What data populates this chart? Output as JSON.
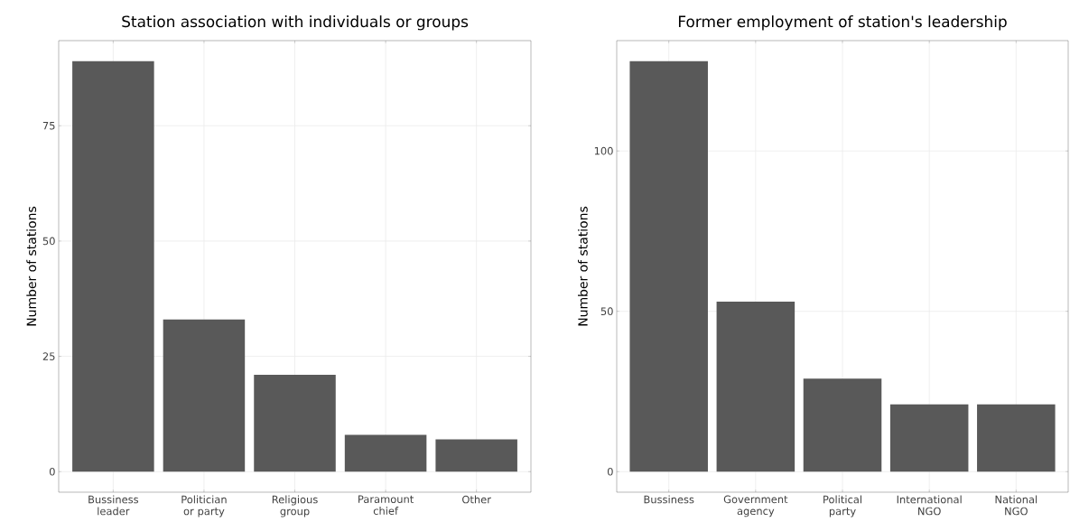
{
  "chart_data": [
    {
      "type": "bar",
      "title": "Station association with individuals or groups",
      "ylabel": "Number of stations",
      "categories": [
        "Bussiness leader",
        "Politician or party",
        "Religious group",
        "Paramount chief",
        "Other"
      ],
      "values": [
        89,
        33,
        21,
        8,
        7
      ],
      "color": "#595959",
      "ylim": [
        -4.45,
        93.45
      ],
      "yticks": [
        0,
        25,
        50,
        75
      ],
      "grid": true
    },
    {
      "type": "bar",
      "title": "Former employment of station's leadership",
      "ylabel": "Number of stations",
      "categories": [
        "Bussiness",
        "Government agency",
        "Political party",
        "International NGO",
        "National NGO"
      ],
      "values": [
        128,
        53,
        29,
        21,
        21
      ],
      "color": "#595959",
      "ylim": [
        -6.4,
        134.4
      ],
      "yticks": [
        0,
        50,
        100
      ],
      "grid": true
    }
  ]
}
